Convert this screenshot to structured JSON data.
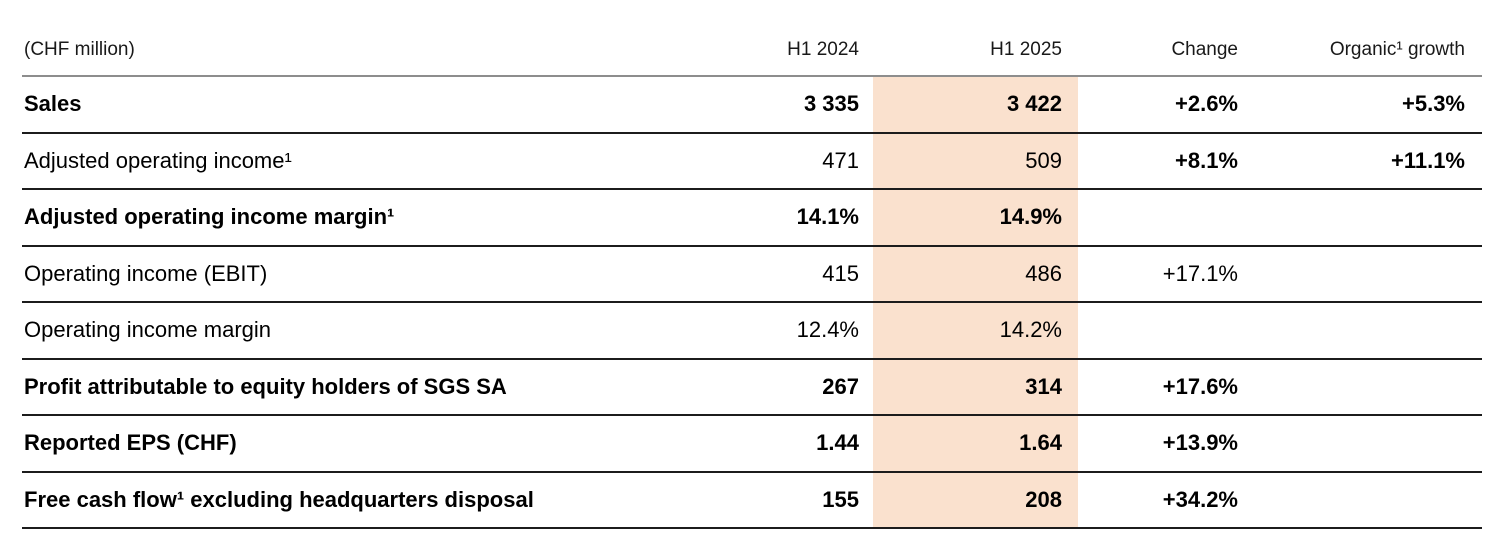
{
  "colors": {
    "highlight": "#fae1ce",
    "header-line": "#8d8d8d",
    "row-line": "#1c1c1c",
    "text": "#000000"
  },
  "header": {
    "unit_label": "(CHF million)",
    "columns": [
      "H1 2024",
      "H1 2025",
      "Change",
      "Organic¹ growth"
    ]
  },
  "rows": [
    {
      "label": "Sales",
      "h1_2024": "3 335",
      "h1_2025": "3 422",
      "change": "+2.6%",
      "organic_growth": "+5.3%"
    },
    {
      "label": "Adjusted operating income¹",
      "h1_2024": "471",
      "h1_2025": "509",
      "change": "+8.1%",
      "organic_growth": "+11.1%"
    },
    {
      "label": "Adjusted operating income margin¹",
      "h1_2024": "14.1%",
      "h1_2025": "14.9%",
      "change": "",
      "organic_growth": ""
    },
    {
      "label": "Operating income (EBIT)",
      "h1_2024": "415",
      "h1_2025": "486",
      "change": "+17.1%",
      "organic_growth": ""
    },
    {
      "label": "Operating income margin",
      "h1_2024": "12.4%",
      "h1_2025": "14.2%",
      "change": "",
      "organic_growth": ""
    },
    {
      "label": "Profit attributable to equity holders of SGS SA",
      "h1_2024": "267",
      "h1_2025": "314",
      "change": "+17.6%",
      "organic_growth": ""
    },
    {
      "label": "Reported EPS (CHF)",
      "h1_2024": "1.44",
      "h1_2025": "1.64",
      "change": "+13.9%",
      "organic_growth": ""
    },
    {
      "label": "Free cash flow¹ excluding headquarters disposal",
      "h1_2024": "155",
      "h1_2025": "208",
      "change": "+34.2%",
      "organic_growth": ""
    }
  ]
}
